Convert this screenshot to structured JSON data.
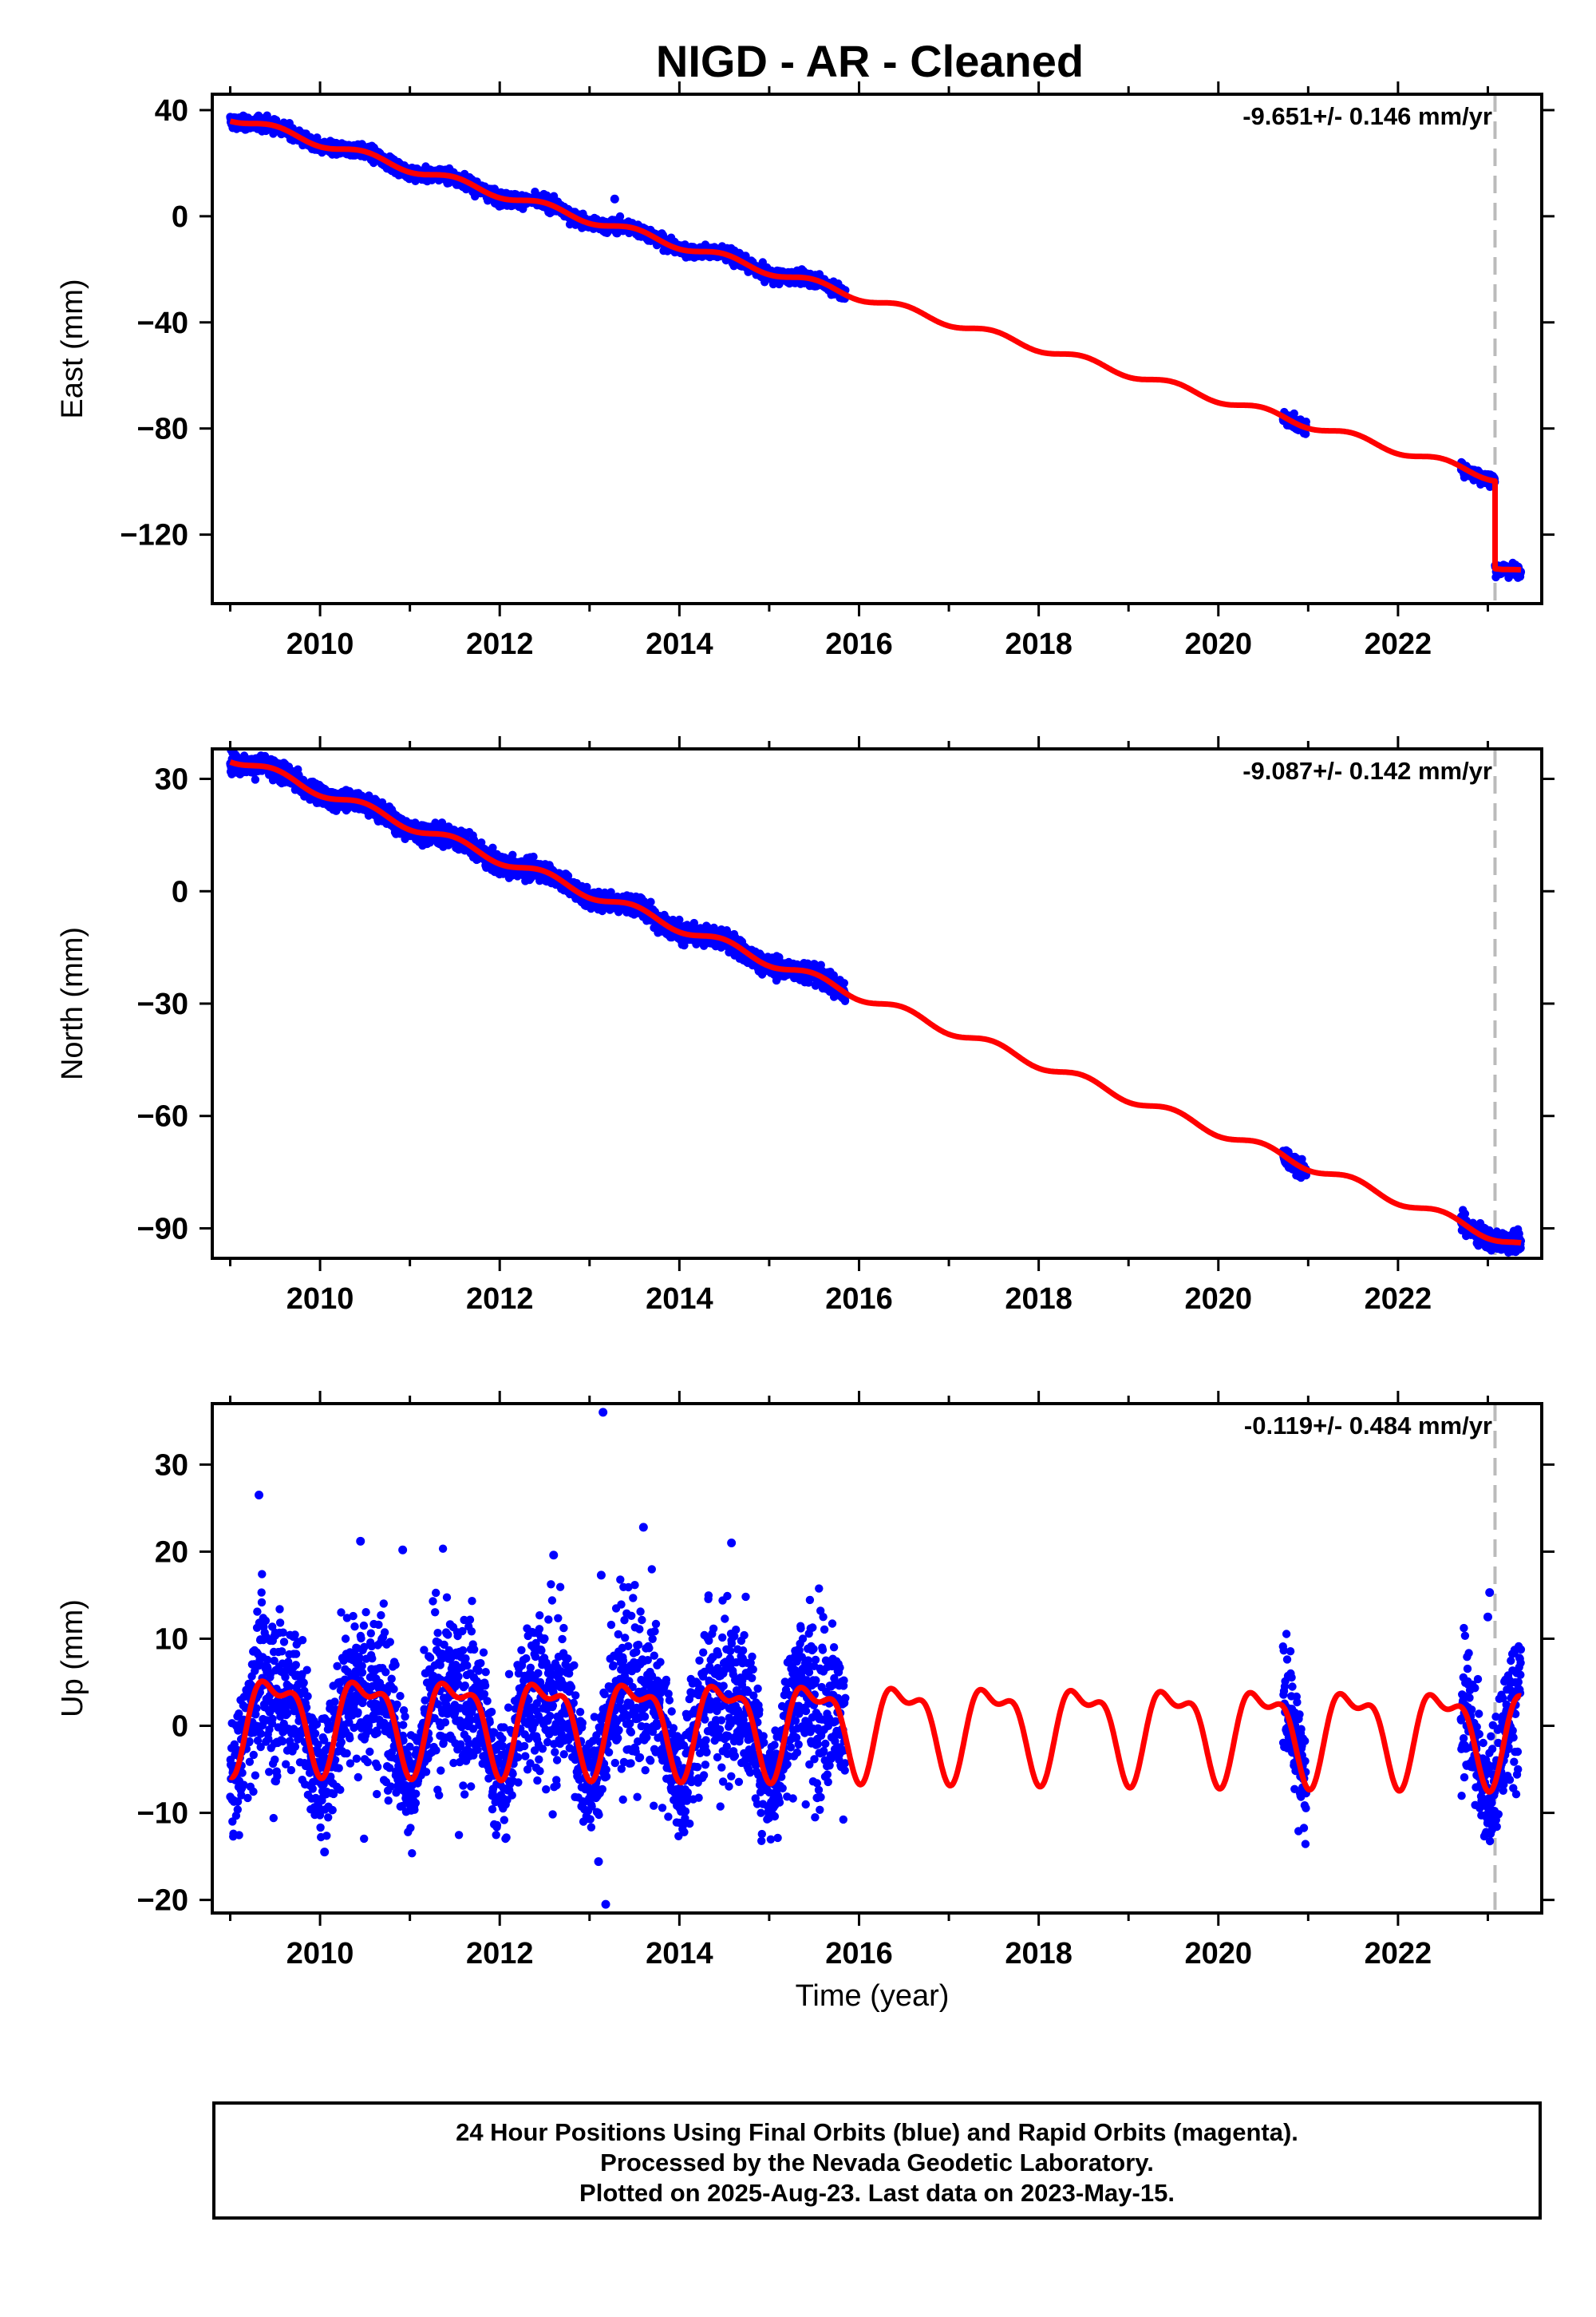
{
  "figure": {
    "title": "NIGD  - AR - Cleaned",
    "xlabel": "Time (year)",
    "caption": [
      "24 Hour Positions Using Final Orbits (blue) and Rapid Orbits (magenta).",
      "Processed by the Nevada Geodetic Laboratory.",
      "Plotted on 2025-Aug-23. Last data on 2023-May-15."
    ]
  },
  "colors": {
    "data": "#0000ff",
    "model": "#ff0000",
    "event_line": "#bbbbbb",
    "frame": "#000000"
  },
  "chart_data": [
    {
      "type": "scatter",
      "name": "east",
      "ylabel": "East (mm)",
      "rate_label": "-9.651+/- 0.146 mm/yr",
      "xlim": [
        2008.8,
        2023.6
      ],
      "ylim": [
        -146,
        46
      ],
      "xticks": [
        2010,
        2012,
        2014,
        2016,
        2018,
        2020,
        2022
      ],
      "yticks": [
        40,
        0,
        -40,
        -80,
        -120
      ],
      "event_year": 2023.08,
      "model": {
        "rate": -9.651,
        "offset_at_2016": -30.2,
        "annual_amp": 1.5,
        "step": {
          "year": 2023.08,
          "size": -33
        }
      },
      "observed_spans": [
        [
          2009.0,
          2015.85
        ],
        [
          2020.72,
          2020.98
        ],
        [
          2022.7,
          2023.37
        ]
      ],
      "observed_scatter_mm": 1.2,
      "outliers": [
        [
          2013.28,
          6.5
        ]
      ]
    },
    {
      "type": "scatter",
      "name": "north",
      "ylabel": "North (mm)",
      "rate_label": "-9.087+/- 0.142 mm/yr",
      "xlim": [
        2008.8,
        2023.6
      ],
      "ylim": [
        -98,
        38
      ],
      "xticks": [
        2010,
        2012,
        2014,
        2016,
        2018,
        2020,
        2022
      ],
      "yticks": [
        30,
        0,
        -30,
        -60,
        -90
      ],
      "event_year": 2023.08,
      "model": {
        "rate": -9.087,
        "offset_at_2016": -27.8,
        "annual_amp": 1.3,
        "step": null
      },
      "observed_spans": [
        [
          2009.0,
          2015.85
        ],
        [
          2020.72,
          2020.98
        ],
        [
          2022.7,
          2023.37
        ]
      ],
      "observed_scatter_mm": 1.3,
      "outliers": []
    },
    {
      "type": "scatter",
      "name": "up",
      "ylabel": "Up (mm)",
      "rate_label": "-0.119+/- 0.484 mm/yr",
      "xlim": [
        2008.8,
        2023.6
      ],
      "ylim": [
        -21.5,
        37
      ],
      "xticks": [
        2010,
        2012,
        2014,
        2016,
        2018,
        2020,
        2022
      ],
      "yticks": [
        30,
        20,
        10,
        0,
        -10,
        -20
      ],
      "event_year": 2023.08,
      "model": {
        "rate": -0.119,
        "offset_at_2016": 0.2,
        "annual_amp": 4.8,
        "semiannual_amp": 2.2,
        "step": null
      },
      "observed_spans": [
        [
          2009.0,
          2015.85
        ],
        [
          2020.72,
          2020.98
        ],
        [
          2022.7,
          2023.37
        ]
      ],
      "observed_scatter_mm": 4.2,
      "outliers": [
        [
          2009.32,
          26.5
        ],
        [
          2010.45,
          21.2
        ],
        [
          2010.92,
          20.2
        ],
        [
          2012.6,
          19.6
        ],
        [
          2013.15,
          36
        ],
        [
          2013.18,
          -20.5
        ],
        [
          2013.13,
          17.3
        ],
        [
          2013.6,
          22.8
        ],
        [
          2014.58,
          21
        ],
        [
          2013.1,
          -15.6
        ],
        [
          2010.05,
          -14.5
        ],
        [
          2023.02,
          15.3
        ],
        [
          2023.0,
          12.5
        ]
      ]
    }
  ]
}
